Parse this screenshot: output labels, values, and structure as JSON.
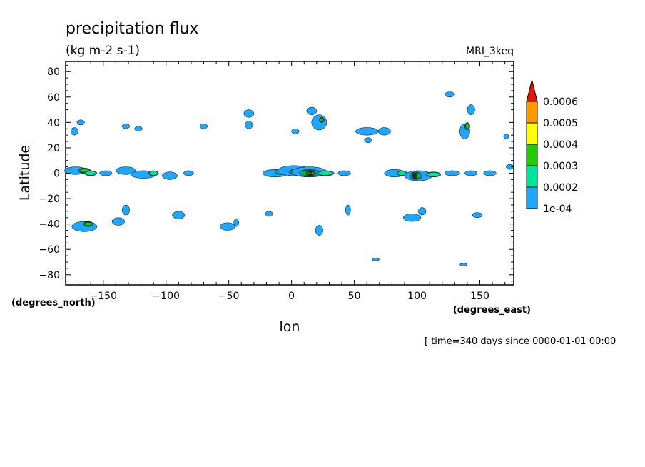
{
  "chart_data": {
    "type": "contour",
    "title": "precipitation flux",
    "subtitle": "(kg m-2 s-1)",
    "model_label": "MRI_3keq",
    "xlabel": "lon",
    "ylabel": "Latitude",
    "x_units": "(degrees_east)",
    "y_units": "(degrees_north)",
    "xlim": [
      -180,
      177
    ],
    "ylim": [
      -88,
      88
    ],
    "x_ticks": [
      -150,
      -100,
      -50,
      0,
      50,
      100,
      150
    ],
    "y_ticks": [
      80,
      60,
      40,
      20,
      0,
      -20,
      -40,
      -60,
      -80
    ],
    "time_label": "[ time=340 days since 0000-01-01 00:00",
    "colorbar": {
      "levels": [
        "1e-04",
        "0.0002",
        "0.0003",
        "0.0004",
        "0.0005",
        "0.0006"
      ],
      "colors": [
        "#1fa6ff",
        "#00e59a",
        "#22cc00",
        "#ffff00",
        "#ff9a00",
        "#e3160a"
      ]
    },
    "blobs": [
      {
        "lon": -172,
        "lat": 2,
        "rx": 9,
        "ry": 3,
        "level": 1
      },
      {
        "lon": -165,
        "lat": 2,
        "rx": 5,
        "ry": 2,
        "level": 3
      },
      {
        "lon": -160,
        "lat": 0,
        "rx": 5,
        "ry": 2,
        "level": 2
      },
      {
        "lon": -148,
        "lat": 0,
        "rx": 5,
        "ry": 2,
        "level": 1
      },
      {
        "lon": -132,
        "lat": 2,
        "rx": 8,
        "ry": 3,
        "level": 1
      },
      {
        "lon": -118,
        "lat": -1,
        "rx": 10,
        "ry": 3,
        "level": 1
      },
      {
        "lon": -110,
        "lat": 0,
        "rx": 4,
        "ry": 2,
        "level": 2
      },
      {
        "lon": -97,
        "lat": -2,
        "rx": 6,
        "ry": 3,
        "level": 1
      },
      {
        "lon": -82,
        "lat": 0,
        "rx": 4,
        "ry": 2,
        "level": 1
      },
      {
        "lon": -13,
        "lat": 0,
        "rx": 10,
        "ry": 3,
        "level": 1
      },
      {
        "lon": -8,
        "lat": 1,
        "rx": 5,
        "ry": 2,
        "level": 2
      },
      {
        "lon": 2,
        "lat": 2,
        "rx": 13,
        "ry": 4,
        "level": 1
      },
      {
        "lon": 3,
        "lat": 1,
        "rx": 5,
        "ry": 2,
        "level": 3
      },
      {
        "lon": 14,
        "lat": 1,
        "rx": 14,
        "ry": 4,
        "level": 1
      },
      {
        "lon": 14,
        "lat": 0,
        "rx": 8,
        "ry": 3,
        "level": 3
      },
      {
        "lon": 15,
        "lat": 0,
        "rx": 4,
        "ry": 2,
        "level": 6
      },
      {
        "lon": 27,
        "lat": 0,
        "rx": 7,
        "ry": 2,
        "level": 2
      },
      {
        "lon": 42,
        "lat": 0,
        "rx": 5,
        "ry": 2,
        "level": 1
      },
      {
        "lon": 82,
        "lat": 0,
        "rx": 8,
        "ry": 3,
        "level": 1
      },
      {
        "lon": 88,
        "lat": 0,
        "rx": 4,
        "ry": 2,
        "level": 2
      },
      {
        "lon": 101,
        "lat": -2,
        "rx": 11,
        "ry": 4,
        "level": 1
      },
      {
        "lon": 99,
        "lat": -2,
        "rx": 5,
        "ry": 3,
        "level": 3
      },
      {
        "lon": 98,
        "lat": -2,
        "rx": 2,
        "ry": 2,
        "level": 6
      },
      {
        "lon": 113,
        "lat": -1,
        "rx": 6,
        "ry": 2,
        "level": 2
      },
      {
        "lon": 128,
        "lat": 0,
        "rx": 6,
        "ry": 2,
        "level": 1
      },
      {
        "lon": 143,
        "lat": 0,
        "rx": 5,
        "ry": 2,
        "level": 1
      },
      {
        "lon": 158,
        "lat": 0,
        "rx": 5,
        "ry": 2,
        "level": 1
      },
      {
        "lon": 174,
        "lat": 5,
        "rx": 3,
        "ry": 2,
        "level": 1
      },
      {
        "lon": -173,
        "lat": 33,
        "rx": 3,
        "ry": 3,
        "level": 1
      },
      {
        "lon": -168,
        "lat": 40,
        "rx": 3,
        "ry": 2,
        "level": 1
      },
      {
        "lon": -132,
        "lat": 37,
        "rx": 3,
        "ry": 2,
        "level": 1
      },
      {
        "lon": -122,
        "lat": 35,
        "rx": 3,
        "ry": 2,
        "level": 1
      },
      {
        "lon": -70,
        "lat": 37,
        "rx": 3,
        "ry": 2,
        "level": 1
      },
      {
        "lon": -34,
        "lat": 47,
        "rx": 4,
        "ry": 3,
        "level": 1
      },
      {
        "lon": -34,
        "lat": 38,
        "rx": 3,
        "ry": 3,
        "level": 1
      },
      {
        "lon": 3,
        "lat": 33,
        "rx": 3,
        "ry": 2,
        "level": 1
      },
      {
        "lon": 16,
        "lat": 49,
        "rx": 4,
        "ry": 3,
        "level": 1
      },
      {
        "lon": 22,
        "lat": 40,
        "rx": 6,
        "ry": 6,
        "level": 1
      },
      {
        "lon": 24,
        "lat": 42,
        "rx": 2,
        "ry": 2,
        "level": 3
      },
      {
        "lon": 60,
        "lat": 33,
        "rx": 9,
        "ry": 3,
        "level": 1
      },
      {
        "lon": 61,
        "lat": 26,
        "rx": 3,
        "ry": 2,
        "level": 1
      },
      {
        "lon": 74,
        "lat": 33,
        "rx": 5,
        "ry": 3,
        "level": 1
      },
      {
        "lon": 126,
        "lat": 62,
        "rx": 4,
        "ry": 2,
        "level": 1
      },
      {
        "lon": 138,
        "lat": 33,
        "rx": 4,
        "ry": 6,
        "level": 1
      },
      {
        "lon": 140,
        "lat": 37,
        "rx": 2,
        "ry": 3,
        "level": 3
      },
      {
        "lon": 143,
        "lat": 50,
        "rx": 3,
        "ry": 4,
        "level": 1
      },
      {
        "lon": 171,
        "lat": 29,
        "rx": 2,
        "ry": 2,
        "level": 1
      },
      {
        "lon": -165,
        "lat": -42,
        "rx": 10,
        "ry": 4,
        "level": 1
      },
      {
        "lon": -162,
        "lat": -40,
        "rx": 4,
        "ry": 2,
        "level": 3
      },
      {
        "lon": -138,
        "lat": -38,
        "rx": 5,
        "ry": 3,
        "level": 1
      },
      {
        "lon": -132,
        "lat": -29,
        "rx": 3,
        "ry": 4,
        "level": 1
      },
      {
        "lon": -90,
        "lat": -33,
        "rx": 5,
        "ry": 3,
        "level": 1
      },
      {
        "lon": -51,
        "lat": -42,
        "rx": 6,
        "ry": 3,
        "level": 1
      },
      {
        "lon": -44,
        "lat": -39,
        "rx": 2,
        "ry": 3,
        "level": 1
      },
      {
        "lon": -18,
        "lat": -32,
        "rx": 3,
        "ry": 2,
        "level": 1
      },
      {
        "lon": 22,
        "lat": -45,
        "rx": 3,
        "ry": 4,
        "level": 1
      },
      {
        "lon": 45,
        "lat": -29,
        "rx": 2,
        "ry": 4,
        "level": 1
      },
      {
        "lon": 96,
        "lat": -35,
        "rx": 7,
        "ry": 3,
        "level": 1
      },
      {
        "lon": 104,
        "lat": -30,
        "rx": 3,
        "ry": 3,
        "level": 1
      },
      {
        "lon": 148,
        "lat": -33,
        "rx": 4,
        "ry": 2,
        "level": 1
      },
      {
        "lon": 67,
        "lat": -68,
        "rx": 3,
        "ry": 1,
        "level": 1
      },
      {
        "lon": 137,
        "lat": -72,
        "rx": 3,
        "ry": 1,
        "level": 1
      }
    ]
  }
}
